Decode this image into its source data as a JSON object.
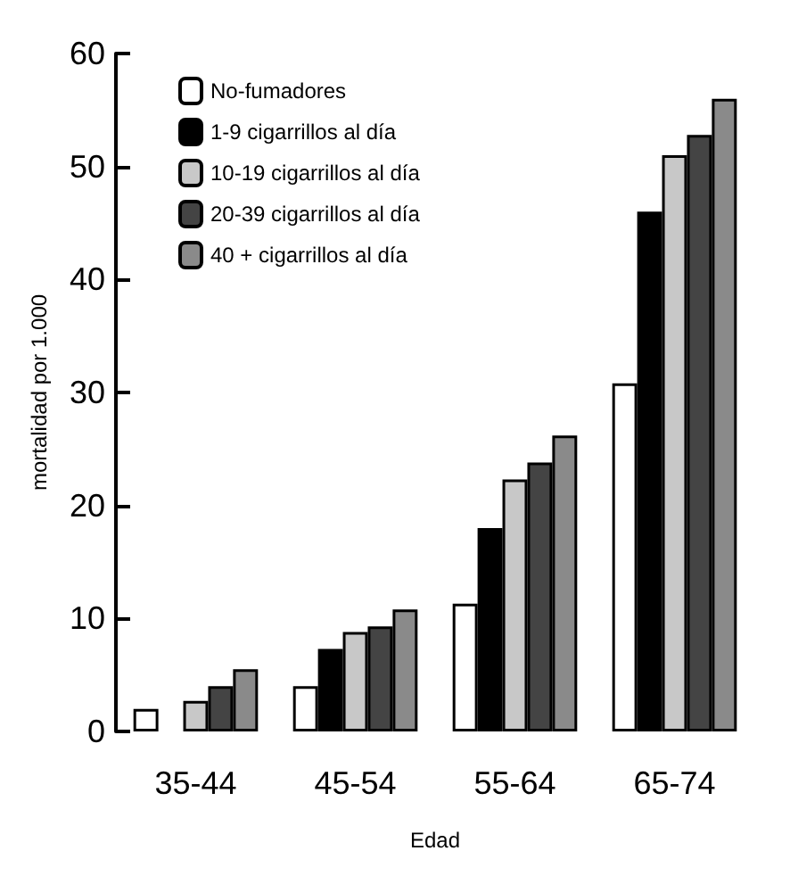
{
  "chart_data": {
    "type": "bar",
    "xlabel": "Edad",
    "ylabel": "mortalidad por 1.000",
    "categories": [
      "35-44",
      "45-54",
      "55-64",
      "65-74"
    ],
    "series": [
      {
        "name": "No-fumadores",
        "color": "#ffffff",
        "values": [
          2,
          4,
          11.3,
          30.8
        ]
      },
      {
        "name": "1-9 cigarrillos al día",
        "color": "#000000",
        "values": [
          null,
          7.3,
          18,
          46
        ]
      },
      {
        "name": "10-19 cigarrillos al día",
        "color": "#c8c8c8",
        "values": [
          2.7,
          8.8,
          22.3,
          51
        ]
      },
      {
        "name": "20-39 cigarrillos al día",
        "color": "#444444",
        "values": [
          4,
          9.3,
          23.8,
          52.8
        ]
      },
      {
        "name": "40 + cigarrillos al día",
        "color": "#8a8a8a",
        "values": [
          5.5,
          10.8,
          26.2,
          56
        ]
      }
    ],
    "ylim": [
      0,
      60
    ],
    "yticks": [
      0,
      10,
      20,
      30,
      40,
      50,
      60
    ],
    "grid": false,
    "legend": "top left"
  }
}
